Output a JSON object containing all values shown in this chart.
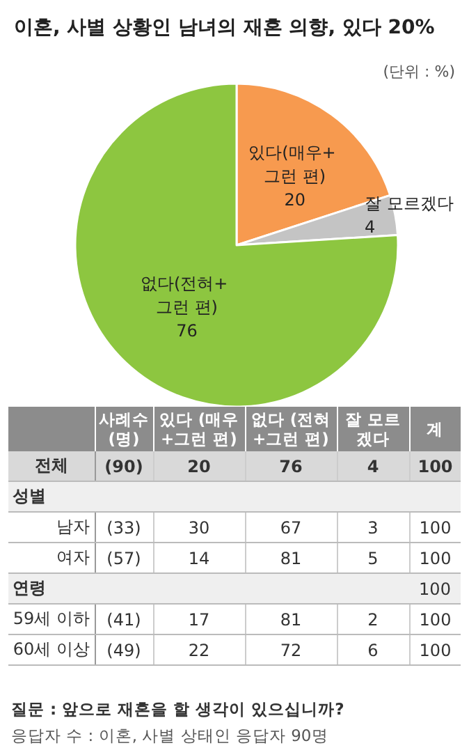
{
  "chart_data": [
    {
      "type": "pie",
      "title": "이혼, 사별 상황인 남녀의 재혼 의향, 있다 20%",
      "annotations": [
        "(단위 : %)"
      ],
      "categories": [
        "있다(매우+ 그런 편)",
        "잘 모르겠다",
        "없다(전혀+ 그런 편)"
      ],
      "values": [
        20,
        4,
        76
      ],
      "colors": [
        "#f79a4f",
        "#c4c4c4",
        "#8dc640"
      ],
      "data_labels": true,
      "legend": false
    },
    {
      "type": "other",
      "categories": [
        "사례수 (명)",
        "있다 (매우+그런 편)",
        "없다 (전혀+그런 편)",
        "잘 모르겠다",
        "계"
      ],
      "y_categories": [
        "전체",
        "성별",
        "남자",
        "여자",
        "연령",
        "59세 이하",
        "60세 이상"
      ],
      "cells": [
        [
          "(90)",
          "20",
          "76",
          "4",
          "100"
        ],
        [
          null,
          null,
          null,
          null,
          null
        ],
        [
          "(33)",
          "30",
          "67",
          "3",
          "100"
        ],
        [
          "(57)",
          "14",
          "81",
          "5",
          "100"
        ],
        [
          null,
          null,
          null,
          null,
          "100"
        ],
        [
          "(41)",
          "17",
          "81",
          "2",
          "100"
        ],
        [
          "(49)",
          "22",
          "72",
          "6",
          "100"
        ]
      ],
      "annotations": [
        "질문 :  앞으로 재혼을 할 생각이 있으십니까?",
        "응답자 수 : 이혼, 사별 상태인 응답자 90명"
      ]
    }
  ]
}
